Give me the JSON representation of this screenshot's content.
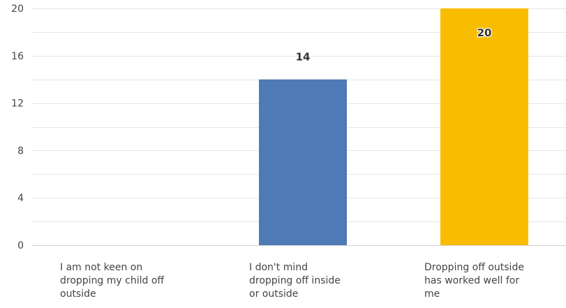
{
  "chart_data": {
    "type": "bar",
    "categories": [
      "I am not keen on dropping my child off outside",
      "I don't mind dropping off inside or outside",
      "Dropping off outside has worked well for me"
    ],
    "category_lines": [
      [
        "I am not keen on",
        "dropping my child off",
        "outside"
      ],
      [
        "I don't mind",
        "dropping off inside",
        "or outside"
      ],
      [
        "Dropping off outside",
        "has worked well for",
        "me"
      ]
    ],
    "values": [
      0,
      14,
      20
    ],
    "data_labels": [
      "",
      "14",
      "20"
    ],
    "colors": [
      "#4e7ab5",
      "#4e7ab5",
      "#f8bd00"
    ],
    "ylim": [
      0,
      20
    ],
    "y_ticks": [
      0,
      4,
      8,
      12,
      16,
      20
    ],
    "grid": true,
    "title": "",
    "xlabel": "",
    "ylabel": ""
  }
}
